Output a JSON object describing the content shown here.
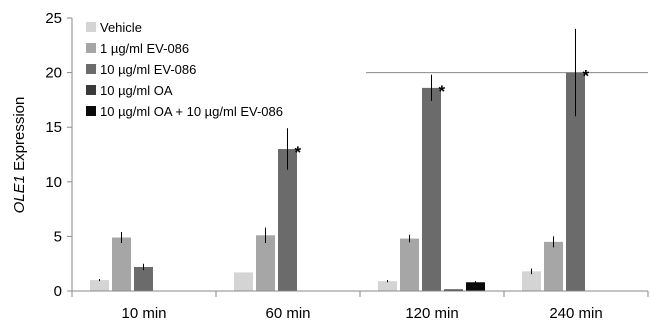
{
  "chart_data": {
    "type": "bar",
    "title": "",
    "xlabel": "",
    "ylabel_italic": "OLE1",
    "ylabel_rest": " Expression",
    "ylim": [
      0,
      25
    ],
    "yticks": [
      "0",
      "5",
      "10",
      "15",
      "20",
      "25"
    ],
    "categories": [
      "10 min",
      "60 min",
      "120 min",
      "240 min"
    ],
    "significance_mark": "*",
    "legend_position": "top-left",
    "gridlines": [
      20
    ],
    "series": [
      {
        "name": "Vehicle",
        "color": "#d4d4d4",
        "values": [
          1.0,
          1.7,
          0.9,
          1.8
        ],
        "errors": [
          0.1,
          0.0,
          0.1,
          0.25
        ],
        "sig": [
          false,
          false,
          false,
          false
        ]
      },
      {
        "name": "1 µg/ml EV-086",
        "color": "#a6a6a6",
        "values": [
          4.9,
          5.1,
          4.8,
          4.5
        ],
        "errors": [
          0.5,
          0.7,
          0.35,
          0.5
        ],
        "sig": [
          false,
          false,
          false,
          false
        ]
      },
      {
        "name": "10 µg/ml EV-086",
        "color": "#6b6b6b",
        "values": [
          2.2,
          13.0,
          18.6,
          20.0
        ],
        "errors": [
          0.3,
          1.9,
          1.2,
          4.0
        ],
        "sig": [
          false,
          true,
          true,
          true
        ]
      },
      {
        "name": "10 µg/ml OA",
        "color": "#3a3a3a",
        "values": [
          0,
          0,
          0.15,
          0
        ],
        "errors": [
          0,
          0,
          0,
          0
        ],
        "sig": [
          false,
          false,
          false,
          false
        ]
      },
      {
        "name": "10 µg/ml OA + 10 µg/ml EV-086",
        "color": "#0a0a0a",
        "values": [
          0,
          0,
          0.8,
          0
        ],
        "errors": [
          0,
          0,
          0.1,
          0
        ],
        "sig": [
          false,
          false,
          false,
          false
        ]
      }
    ]
  }
}
